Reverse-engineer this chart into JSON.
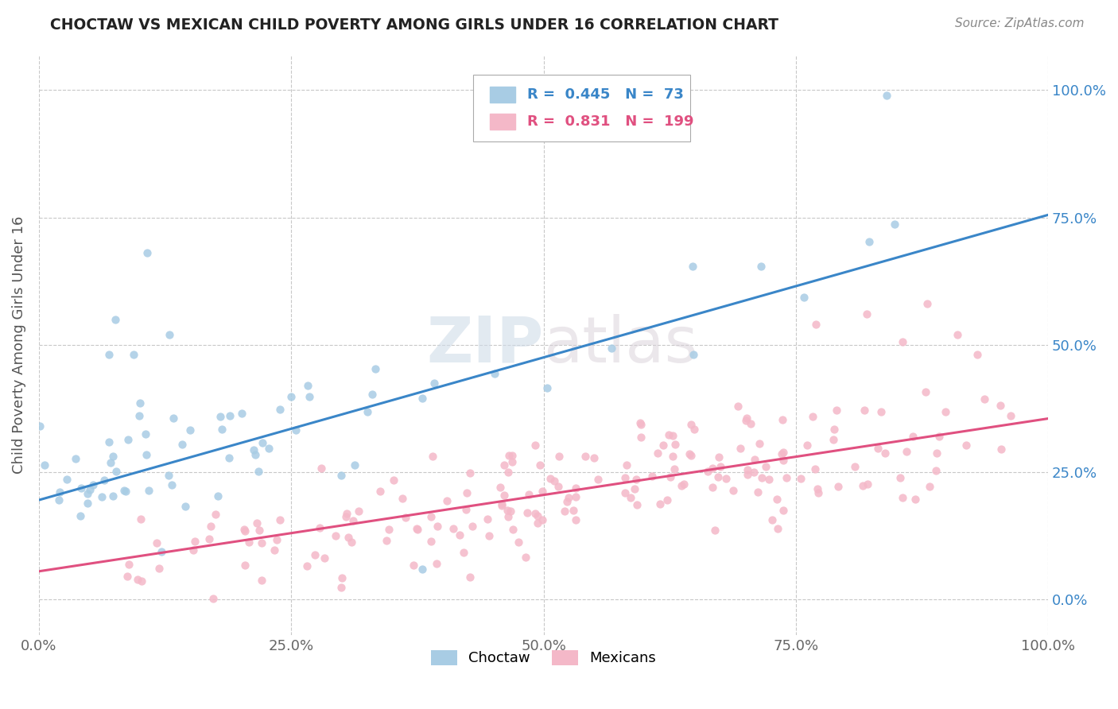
{
  "title": "CHOCTAW VS MEXICAN CHILD POVERTY AMONG GIRLS UNDER 16 CORRELATION CHART",
  "source": "Source: ZipAtlas.com",
  "ylabel": "Child Poverty Among Girls Under 16",
  "watermark": "ZIPAtlas",
  "choctaw_R": 0.445,
  "choctaw_N": 73,
  "mexican_R": 0.831,
  "mexican_N": 199,
  "choctaw_color": "#a8cce4",
  "mexican_color": "#f4b8c8",
  "choctaw_line_color": "#3a86c8",
  "mexican_line_color": "#e05080",
  "background_color": "#ffffff",
  "grid_color": "#c8c8c8",
  "xlim": [
    0.0,
    1.0
  ],
  "ylim": [
    -0.07,
    1.07
  ],
  "x_ticks": [
    0.0,
    0.25,
    0.5,
    0.75,
    1.0
  ],
  "x_tick_labels": [
    "0.0%",
    "25.0%",
    "50.0%",
    "75.0%",
    "100.0%"
  ],
  "y_ticks": [
    0.0,
    0.25,
    0.5,
    0.75,
    1.0
  ],
  "y_tick_labels": [
    "0.0%",
    "25.0%",
    "50.0%",
    "75.0%",
    "100.0%"
  ],
  "choctaw_slope": 0.56,
  "choctaw_intercept": 0.195,
  "mexican_slope": 0.3,
  "mexican_intercept": 0.055
}
